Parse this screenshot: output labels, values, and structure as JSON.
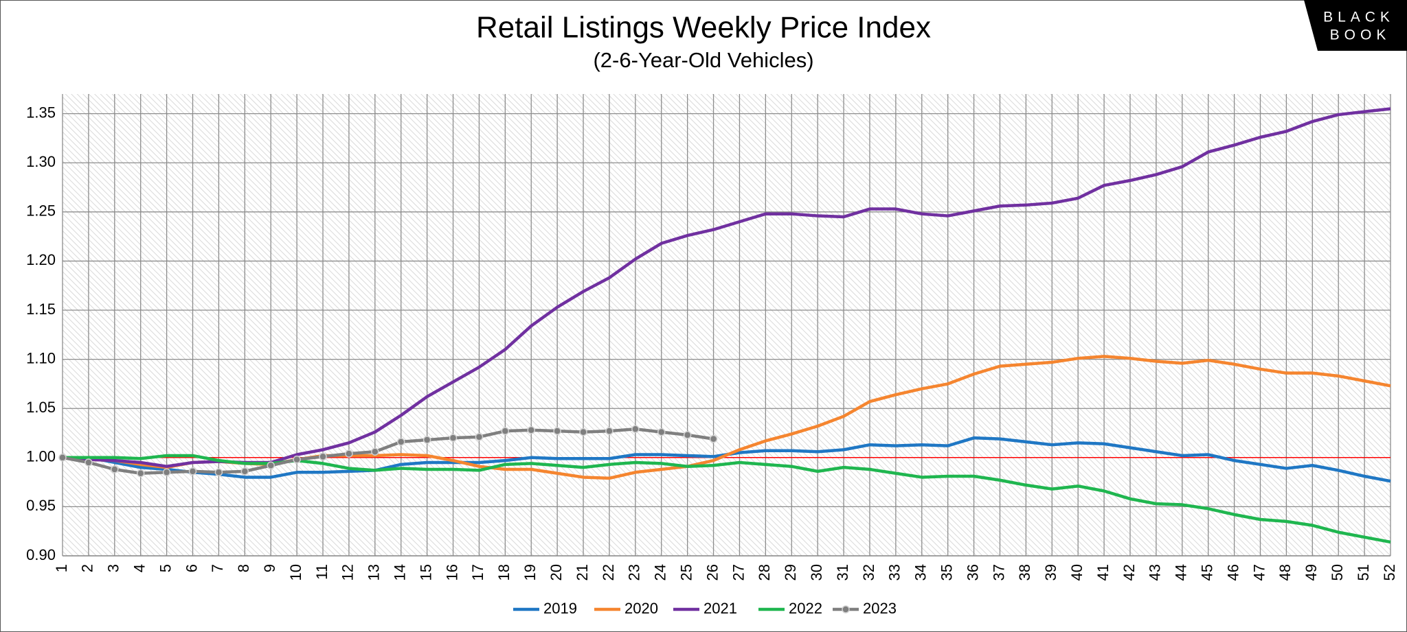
{
  "chart_data": {
    "type": "line",
    "title": "Retail Listings Weekly Price Index",
    "subtitle": "(2-6-Year-Old Vehicles)",
    "logo": [
      "BLACK",
      "BOOK"
    ],
    "x": [
      1,
      2,
      3,
      4,
      5,
      6,
      7,
      8,
      9,
      10,
      11,
      12,
      13,
      14,
      15,
      16,
      17,
      18,
      19,
      20,
      21,
      22,
      23,
      24,
      25,
      26,
      27,
      28,
      29,
      30,
      31,
      32,
      33,
      34,
      35,
      36,
      37,
      38,
      39,
      40,
      41,
      42,
      43,
      44,
      45,
      46,
      47,
      48,
      49,
      50,
      51,
      52
    ],
    "xlim": [
      1,
      52
    ],
    "ylim": [
      0.9,
      1.37
    ],
    "yticks": [
      {
        "value": 0.9,
        "label": "0.90"
      },
      {
        "value": 0.95,
        "label": "0.95"
      },
      {
        "value": 1.0,
        "label": "1.00"
      },
      {
        "value": 1.05,
        "label": "1.05"
      },
      {
        "value": 1.1,
        "label": "1.10"
      },
      {
        "value": 1.15,
        "label": "1.15"
      },
      {
        "value": 1.2,
        "label": "1.20"
      },
      {
        "value": 1.25,
        "label": "1.25"
      },
      {
        "value": 1.3,
        "label": "1.30"
      },
      {
        "value": 1.35,
        "label": "1.35"
      }
    ],
    "grid": true,
    "reference_line": {
      "value": 1.0,
      "color": "#ff0000"
    },
    "legend": "bottom",
    "series": [
      {
        "name": "2019",
        "color": "#1f77c4",
        "values": [
          1.0,
          1.0,
          0.995,
          0.99,
          0.988,
          0.985,
          0.983,
          0.98,
          0.98,
          0.985,
          0.985,
          0.986,
          0.987,
          0.993,
          0.995,
          0.995,
          0.995,
          0.997,
          1.0,
          0.999,
          0.999,
          0.999,
          1.003,
          1.003,
          1.002,
          1.001,
          1.005,
          1.007,
          1.007,
          1.006,
          1.008,
          1.013,
          1.012,
          1.013,
          1.012,
          1.02,
          1.019,
          1.016,
          1.013,
          1.015,
          1.014,
          1.01,
          1.006,
          1.002,
          1.003,
          0.997,
          0.993,
          0.989,
          0.992,
          0.987,
          0.981,
          0.976
        ]
      },
      {
        "name": "2020",
        "color": "#f5852f",
        "values": [
          1.0,
          0.998,
          0.997,
          0.993,
          0.99,
          0.995,
          0.996,
          0.994,
          0.993,
          0.998,
          1.002,
          1.002,
          1.002,
          1.003,
          1.002,
          0.997,
          0.991,
          0.988,
          0.988,
          0.984,
          0.98,
          0.979,
          0.985,
          0.988,
          0.991,
          0.997,
          1.008,
          1.017,
          1.024,
          1.032,
          1.042,
          1.057,
          1.064,
          1.07,
          1.075,
          1.085,
          1.093,
          1.095,
          1.097,
          1.101,
          1.103,
          1.101,
          1.098,
          1.096,
          1.099,
          1.095,
          1.09,
          1.086,
          1.086,
          1.083,
          1.078,
          1.073
        ]
      },
      {
        "name": "2021",
        "color": "#7030a0",
        "values": [
          1.0,
          0.998,
          0.997,
          0.995,
          0.991,
          0.995,
          0.996,
          0.995,
          0.995,
          1.003,
          1.008,
          1.015,
          1.026,
          1.043,
          1.062,
          1.077,
          1.092,
          1.11,
          1.134,
          1.153,
          1.169,
          1.183,
          1.202,
          1.218,
          1.226,
          1.232,
          1.24,
          1.248,
          1.248,
          1.246,
          1.245,
          1.253,
          1.253,
          1.248,
          1.246,
          1.251,
          1.256,
          1.257,
          1.259,
          1.264,
          1.277,
          1.282,
          1.288,
          1.296,
          1.311,
          1.318,
          1.326,
          1.332,
          1.342,
          1.349,
          1.352,
          1.355
        ]
      },
      {
        "name": "2022",
        "color": "#1fb64f",
        "values": [
          1.0,
          1.0,
          1.0,
          0.999,
          1.002,
          1.002,
          0.997,
          0.994,
          0.994,
          0.997,
          0.994,
          0.989,
          0.987,
          0.989,
          0.988,
          0.988,
          0.987,
          0.993,
          0.994,
          0.992,
          0.99,
          0.993,
          0.995,
          0.994,
          0.991,
          0.992,
          0.995,
          0.993,
          0.991,
          0.986,
          0.99,
          0.988,
          0.984,
          0.98,
          0.981,
          0.981,
          0.977,
          0.972,
          0.968,
          0.971,
          0.966,
          0.958,
          0.953,
          0.952,
          0.948,
          0.942,
          0.937,
          0.935,
          0.931,
          0.924,
          0.919,
          0.914
        ]
      },
      {
        "name": "2023",
        "color": "#7f7f7f",
        "markers": true,
        "values": [
          1.0,
          0.995,
          0.988,
          0.984,
          0.985,
          0.986,
          0.985,
          0.986,
          0.992,
          0.998,
          1.001,
          1.004,
          1.006,
          1.016,
          1.018,
          1.02,
          1.021,
          1.027,
          1.028,
          1.027,
          1.026,
          1.027,
          1.029,
          1.026,
          1.023,
          1.019,
          null,
          null,
          null,
          null,
          null,
          null,
          null,
          null,
          null,
          null,
          null,
          null,
          null,
          null,
          null,
          null,
          null,
          null,
          null,
          null,
          null,
          null,
          null,
          null,
          null,
          null
        ]
      }
    ]
  }
}
